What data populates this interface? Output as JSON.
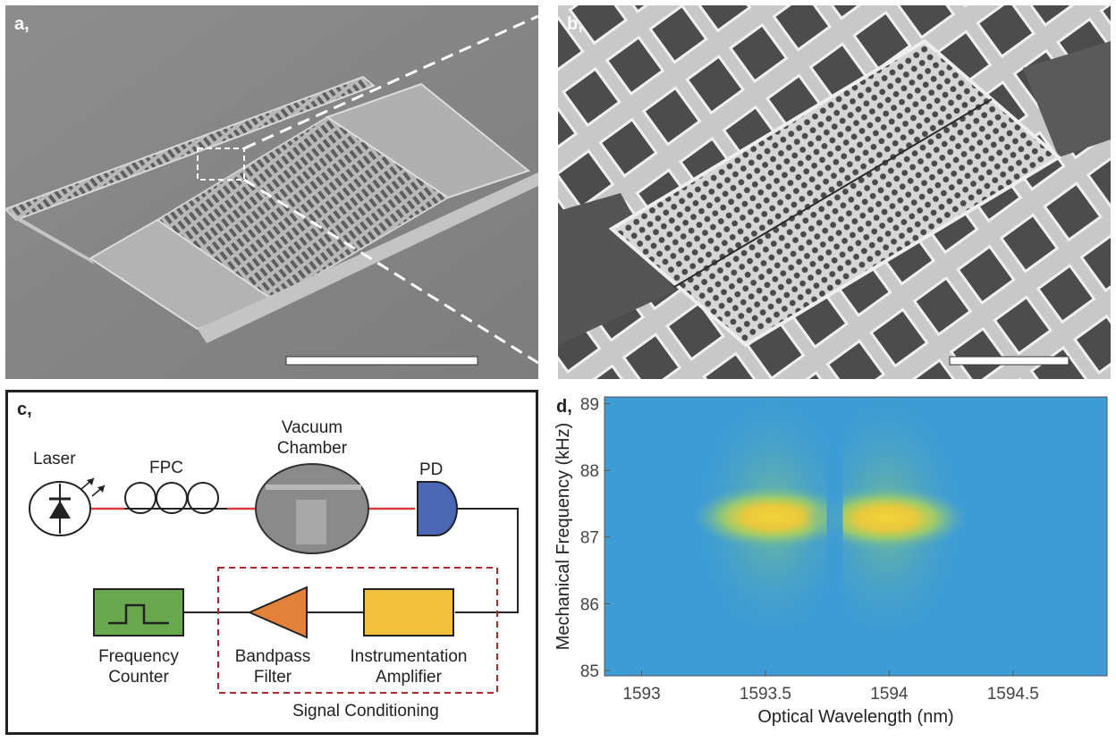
{
  "panels": {
    "a": {
      "label": "a,"
    },
    "b": {
      "label": "b,"
    },
    "c": {
      "label": "c,",
      "laser": "Laser",
      "fpc": "FPC",
      "vacuum_line1": "Vacuum",
      "vacuum_line2": "Chamber",
      "pd": "PD",
      "counter_line1": "Frequency",
      "counter_line2": "Counter",
      "filter_line1": "Bandpass",
      "filter_line2": "Filter",
      "amp_line1": "Instrumentation",
      "amp_line2": "Amplifier",
      "group": "Signal Conditioning"
    },
    "d": {
      "label": "d,"
    }
  },
  "colors": {
    "fiber": "#e03a3a",
    "pd": "#4a66b4",
    "counter": "#6aa84f",
    "filter": "#e3803a",
    "amplifier": "#f3c23c",
    "group_border": "#b5252d",
    "heatmap_bg": "#3d9bd6"
  },
  "chart_data": {
    "type": "heatmap",
    "title": "",
    "xlabel": "Optical Wavelength (nm)",
    "ylabel": "Mechanical Frequency (kHz)",
    "xlim": [
      1592.85,
      1594.88
    ],
    "ylim": [
      84.92,
      89.1
    ],
    "xticks": [
      1593,
      1593.5,
      1594,
      1594.5
    ],
    "xtick_labels": [
      "1593",
      "1593.5",
      "1594",
      "1594.5"
    ],
    "yticks": [
      85,
      86,
      87,
      88,
      89
    ],
    "ytick_labels": [
      "85",
      "86",
      "87",
      "88",
      "89"
    ],
    "peaks": [
      {
        "wavelength": 1593.53,
        "frequency": 87.3
      },
      {
        "wavelength": 1593.99,
        "frequency": 87.28
      }
    ],
    "null_wavelength": 1593.78
  }
}
